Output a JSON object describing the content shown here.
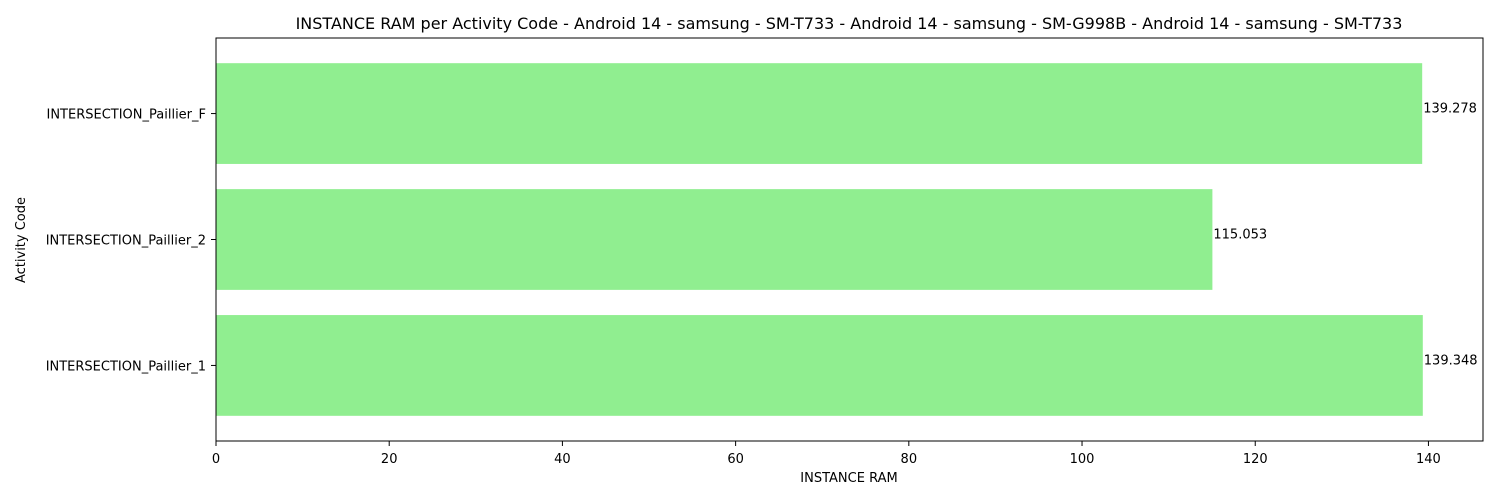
{
  "chart_data": {
    "type": "bar",
    "orientation": "horizontal",
    "title": "INSTANCE RAM per Activity Code - Android 14 - samsung - SM-T733 - Android 14 - samsung - SM-G998B - Android 14 - samsung - SM-T733",
    "xlabel": "INSTANCE RAM",
    "ylabel": "Activity Code",
    "categories": [
      "INTERSECTION_Paillier_1",
      "INTERSECTION_Paillier_2",
      "INTERSECTION_Paillier_F"
    ],
    "values": [
      139.348,
      115.053,
      139.278
    ],
    "value_labels": [
      "139.348",
      "115.053",
      "139.278"
    ],
    "xlim": [
      0,
      146.3
    ],
    "xticks": [
      0,
      20,
      40,
      60,
      80,
      100,
      120,
      140
    ],
    "xtick_labels": [
      "0",
      "20",
      "40",
      "60",
      "80",
      "100",
      "120",
      "140"
    ],
    "bar_color": "#90ee90",
    "grid": false,
    "legend": "none"
  }
}
